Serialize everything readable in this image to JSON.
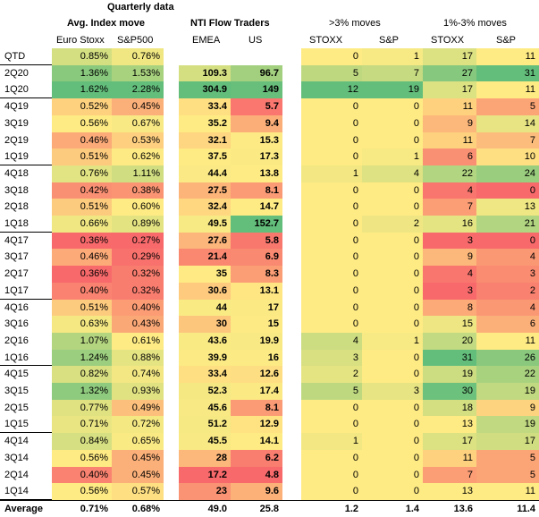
{
  "title": "Quarterly data",
  "groups": {
    "avg_index": {
      "title": "Avg. Index move",
      "sub": [
        "Euro Stoxx",
        "S&P500"
      ]
    },
    "nti": {
      "title": "NTI Flow Traders",
      "sub": [
        "EMEA",
        "US"
      ]
    },
    "gt3": {
      "title": ">3% moves",
      "sub": [
        "STOXX",
        "S&P"
      ]
    },
    "r13": {
      "title": "1%-3% moves",
      "sub": [
        "STOXX",
        "S&P"
      ]
    }
  },
  "colors": {
    "green": "#63be7b",
    "yellow": "#ffeb84",
    "red": "#f8696b"
  },
  "rows": [
    {
      "q": "QTD",
      "es": "0.85%",
      "sp": "0.76%",
      "emea": "",
      "us": "",
      "sx3": "0",
      "sp3": "1",
      "sx13": "17",
      "sp13": "11"
    },
    {
      "q": "2Q20",
      "es": "1.36%",
      "sp": "1.53%",
      "emea": "109.3",
      "us": "96.7",
      "sx3": "5",
      "sp3": "7",
      "sx13": "27",
      "sp13": "31"
    },
    {
      "q": "1Q20",
      "es": "1.62%",
      "sp": "2.28%",
      "emea": "304.9",
      "us": "149",
      "sx3": "12",
      "sp3": "19",
      "sx13": "17",
      "sp13": "11"
    },
    {
      "q": "4Q19",
      "es": "0.52%",
      "sp": "0.45%",
      "emea": "33.4",
      "us": "5.7",
      "sx3": "0",
      "sp3": "0",
      "sx13": "11",
      "sp13": "5"
    },
    {
      "q": "3Q19",
      "es": "0.56%",
      "sp": "0.67%",
      "emea": "35.2",
      "us": "9.4",
      "sx3": "0",
      "sp3": "0",
      "sx13": "9",
      "sp13": "14"
    },
    {
      "q": "2Q19",
      "es": "0.46%",
      "sp": "0.53%",
      "emea": "32.1",
      "us": "15.3",
      "sx3": "0",
      "sp3": "0",
      "sx13": "11",
      "sp13": "7"
    },
    {
      "q": "1Q19",
      "es": "0.51%",
      "sp": "0.62%",
      "emea": "37.5",
      "us": "17.3",
      "sx3": "0",
      "sp3": "1",
      "sx13": "6",
      "sp13": "10"
    },
    {
      "q": "4Q18",
      "es": "0.76%",
      "sp": "1.11%",
      "emea": "44.4",
      "us": "13.8",
      "sx3": "1",
      "sp3": "4",
      "sx13": "22",
      "sp13": "24"
    },
    {
      "q": "3Q18",
      "es": "0.42%",
      "sp": "0.38%",
      "emea": "27.5",
      "us": "8.1",
      "sx3": "0",
      "sp3": "0",
      "sx13": "4",
      "sp13": "0"
    },
    {
      "q": "2Q18",
      "es": "0.51%",
      "sp": "0.60%",
      "emea": "32.4",
      "us": "14.7",
      "sx3": "0",
      "sp3": "0",
      "sx13": "7",
      "sp13": "13"
    },
    {
      "q": "1Q18",
      "es": "0.66%",
      "sp": "0.89%",
      "emea": "49.5",
      "us": "152.7",
      "sx3": "0",
      "sp3": "2",
      "sx13": "16",
      "sp13": "21"
    },
    {
      "q": "4Q17",
      "es": "0.36%",
      "sp": "0.27%",
      "emea": "27.6",
      "us": "5.8",
      "sx3": "0",
      "sp3": "0",
      "sx13": "3",
      "sp13": "0"
    },
    {
      "q": "3Q17",
      "es": "0.46%",
      "sp": "0.29%",
      "emea": "21.4",
      "us": "6.9",
      "sx3": "0",
      "sp3": "0",
      "sx13": "9",
      "sp13": "4"
    },
    {
      "q": "2Q17",
      "es": "0.36%",
      "sp": "0.32%",
      "emea": "35",
      "us": "8.3",
      "sx3": "0",
      "sp3": "0",
      "sx13": "4",
      "sp13": "3"
    },
    {
      "q": "1Q17",
      "es": "0.40%",
      "sp": "0.32%",
      "emea": "30.6",
      "us": "13.1",
      "sx3": "0",
      "sp3": "0",
      "sx13": "3",
      "sp13": "2"
    },
    {
      "q": "4Q16",
      "es": "0.51%",
      "sp": "0.40%",
      "emea": "44",
      "us": "17",
      "sx3": "0",
      "sp3": "0",
      "sx13": "8",
      "sp13": "4"
    },
    {
      "q": "3Q16",
      "es": "0.63%",
      "sp": "0.43%",
      "emea": "30",
      "us": "15",
      "sx3": "0",
      "sp3": "0",
      "sx13": "15",
      "sp13": "6"
    },
    {
      "q": "2Q16",
      "es": "1.07%",
      "sp": "0.61%",
      "emea": "43.6",
      "us": "19.9",
      "sx3": "4",
      "sp3": "1",
      "sx13": "20",
      "sp13": "11"
    },
    {
      "q": "1Q16",
      "es": "1.24%",
      "sp": "0.88%",
      "emea": "39.9",
      "us": "16",
      "sx3": "3",
      "sp3": "0",
      "sx13": "31",
      "sp13": "26"
    },
    {
      "q": "4Q15",
      "es": "0.82%",
      "sp": "0.74%",
      "emea": "33.4",
      "us": "12.6",
      "sx3": "2",
      "sp3": "0",
      "sx13": "19",
      "sp13": "22"
    },
    {
      "q": "3Q15",
      "es": "1.32%",
      "sp": "0.93%",
      "emea": "52.3",
      "us": "17.4",
      "sx3": "5",
      "sp3": "3",
      "sx13": "30",
      "sp13": "19"
    },
    {
      "q": "2Q15",
      "es": "0.77%",
      "sp": "0.49%",
      "emea": "45.6",
      "us": "8.1",
      "sx3": "0",
      "sp3": "0",
      "sx13": "18",
      "sp13": "9"
    },
    {
      "q": "1Q15",
      "es": "0.71%",
      "sp": "0.72%",
      "emea": "51.2",
      "us": "12.9",
      "sx3": "0",
      "sp3": "0",
      "sx13": "13",
      "sp13": "19"
    },
    {
      "q": "4Q14",
      "es": "0.84%",
      "sp": "0.65%",
      "emea": "45.5",
      "us": "14.1",
      "sx3": "1",
      "sp3": "0",
      "sx13": "17",
      "sp13": "17"
    },
    {
      "q": "3Q14",
      "es": "0.56%",
      "sp": "0.45%",
      "emea": "28",
      "us": "6.2",
      "sx3": "0",
      "sp3": "0",
      "sx13": "11",
      "sp13": "5"
    },
    {
      "q": "2Q14",
      "es": "0.40%",
      "sp": "0.45%",
      "emea": "17.2",
      "us": "4.8",
      "sx3": "0",
      "sp3": "0",
      "sx13": "7",
      "sp13": "5"
    },
    {
      "q": "1Q14",
      "es": "0.56%",
      "sp": "0.57%",
      "emea": "23",
      "us": "9.6",
      "sx3": "0",
      "sp3": "0",
      "sx13": "13",
      "sp13": "11"
    }
  ],
  "average": {
    "label": "Average",
    "es": "0.71%",
    "sp": "0.68%",
    "emea": "49.0",
    "us": "25.8",
    "sx3": "1.2",
    "sp3": "1.4",
    "sx13": "13.6",
    "sp13": "11.4"
  }
}
